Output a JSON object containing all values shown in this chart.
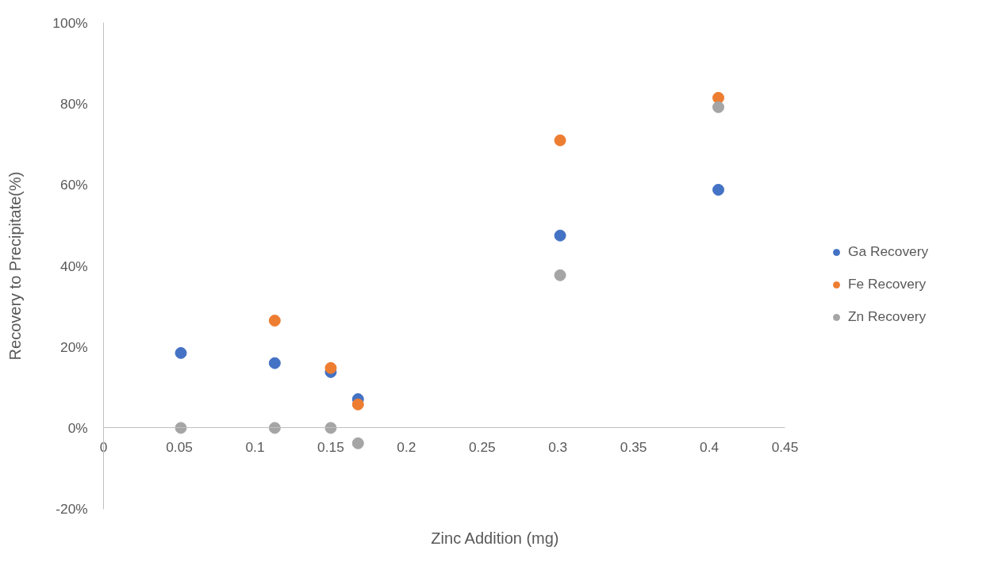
{
  "chart_data": {
    "type": "scatter",
    "xlabel": "Zinc Addition (mg)",
    "ylabel": "Recovery to Precipitate(%)",
    "x": [
      0.051,
      0.113,
      0.15,
      0.168,
      0.3015,
      0.406
    ],
    "series": [
      {
        "name": "Ga Recovery",
        "color": "#4472c4",
        "values": [
          18.5,
          16.0,
          13.8,
          7.1,
          47.5,
          58.8
        ]
      },
      {
        "name": "Fe Recovery",
        "color": "#ed7d31",
        "values": [
          null,
          26.5,
          14.8,
          5.8,
          71.0,
          81.5
        ]
      },
      {
        "name": "Zn Recovery",
        "color": "#a5a5a5",
        "values": [
          0,
          0,
          0,
          -3.8,
          37.7,
          79.2
        ]
      }
    ],
    "xlim": [
      0,
      0.45
    ],
    "xticks": [
      0,
      0.05,
      0.1,
      0.15,
      0.2,
      0.25,
      0.3,
      0.35,
      0.4,
      0.45
    ],
    "ylim": [
      -20,
      100
    ],
    "yticks": [
      {
        "value": -20,
        "label": "-20%"
      },
      {
        "value": 0,
        "label": "0%"
      },
      {
        "value": 20,
        "label": "20%"
      },
      {
        "value": 40,
        "label": "40%"
      },
      {
        "value": 60,
        "label": "60%"
      },
      {
        "value": 80,
        "label": "80%"
      },
      {
        "value": 100,
        "label": "100%"
      }
    ],
    "grid": false,
    "legend": "right",
    "marker": "circle"
  }
}
